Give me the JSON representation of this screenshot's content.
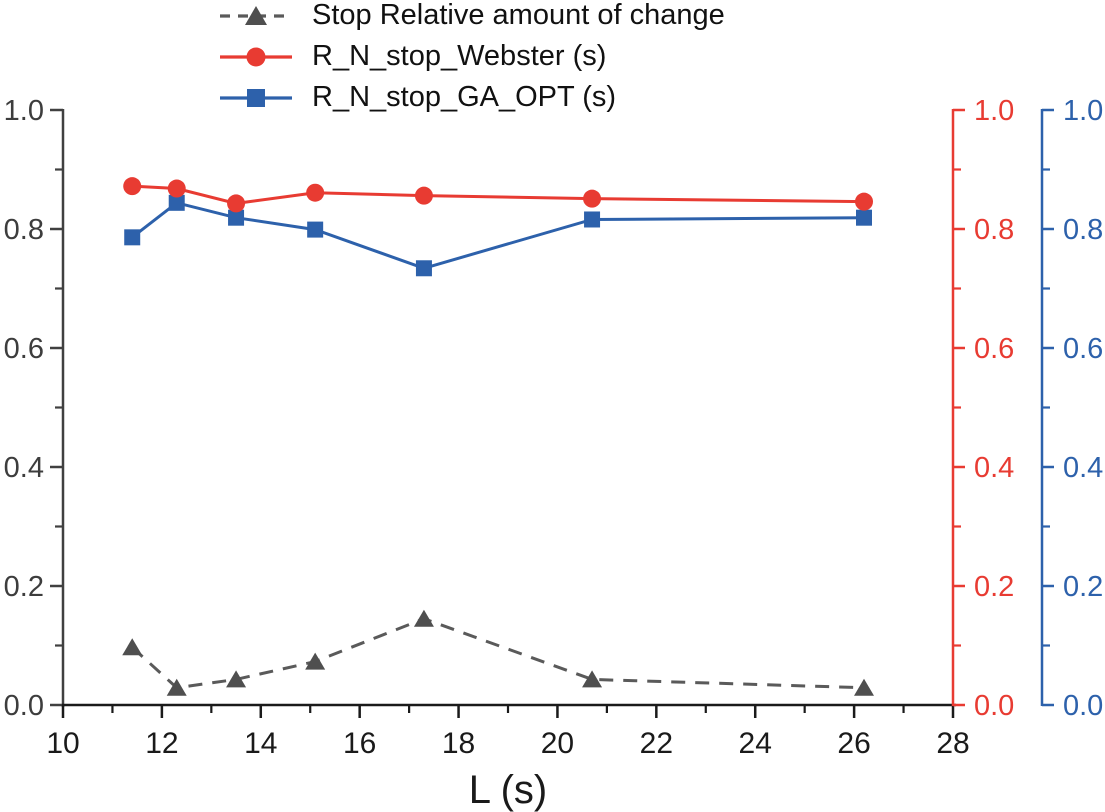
{
  "legend": {
    "items": [
      {
        "label": "Stop Relative amount of change",
        "icon": "triangle-marker-icon"
      },
      {
        "label": "R_N_stop_Webster (s)",
        "icon": "circle-marker-icon"
      },
      {
        "label": "R_N_stop_GA_OPT (s)",
        "icon": "square-marker-icon"
      }
    ]
  },
  "chart_data": {
    "type": "line",
    "title": "",
    "xlabel": "L (s)",
    "ylabel_left": "",
    "xlim": [
      10,
      28
    ],
    "ylim": [
      0,
      1
    ],
    "grid": false,
    "legend_position": "top-center",
    "x": [
      11.4,
      12.3,
      13.5,
      15.1,
      17.3,
      20.7,
      26.2
    ],
    "x_major_ticks": [
      "10",
      "12",
      "14",
      "16",
      "18",
      "20",
      "22",
      "24",
      "26",
      "28"
    ],
    "x_minor_ticks": [
      11,
      13,
      15,
      17,
      19,
      21,
      23,
      25,
      27
    ],
    "y_major_ticks": [
      "0.0",
      "0.2",
      "0.4",
      "0.6",
      "0.8",
      "1.0"
    ],
    "y_minor_ticks": [
      0.1,
      0.3,
      0.5,
      0.7,
      0.9
    ],
    "series": [
      {
        "name": "Stop Relative amount of change",
        "axis": "left",
        "color": "#5a5a5a",
        "marker_color": "#4f4f4f",
        "line_style": "dashed",
        "marker": "triangle",
        "values": [
          0.097,
          0.029,
          0.043,
          0.073,
          0.145,
          0.043,
          0.029
        ]
      },
      {
        "name": "R_N_stop_Webster (s)",
        "axis": "right-red",
        "color": "#e83b32",
        "marker_color": "#e83b32",
        "line_style": "solid",
        "marker": "circle",
        "values": [
          0.872,
          0.868,
          0.843,
          0.861,
          0.856,
          0.851,
          0.846
        ]
      },
      {
        "name": "R_N_stop_GA_OPT (s)",
        "axis": "right-blue",
        "color": "#2d61ab",
        "marker_color": "#2d61ab",
        "line_style": "solid",
        "marker": "square",
        "values": [
          0.786,
          0.844,
          0.819,
          0.799,
          0.734,
          0.816,
          0.819
        ]
      }
    ],
    "axes": {
      "bottom": {
        "color": "#1a1a1a",
        "label_color": "#1a1a1a"
      },
      "left": {
        "color": "#404040",
        "label_color": "#3d3d3d",
        "ticks": [
          "0.0",
          "0.2",
          "0.4",
          "0.6",
          "0.8",
          "1.0"
        ]
      },
      "right_red": {
        "color": "#e83b32",
        "label_color": "#e83b32",
        "ticks": [
          "0.0",
          "0.2",
          "0.4",
          "0.6",
          "0.8",
          "1.0"
        ]
      },
      "right_blue": {
        "color": "#2d61ab",
        "label_color": "#2d61ab",
        "ticks": [
          "0.0",
          "0.2",
          "0.4",
          "0.6",
          "0.8",
          "1.0"
        ]
      }
    }
  }
}
